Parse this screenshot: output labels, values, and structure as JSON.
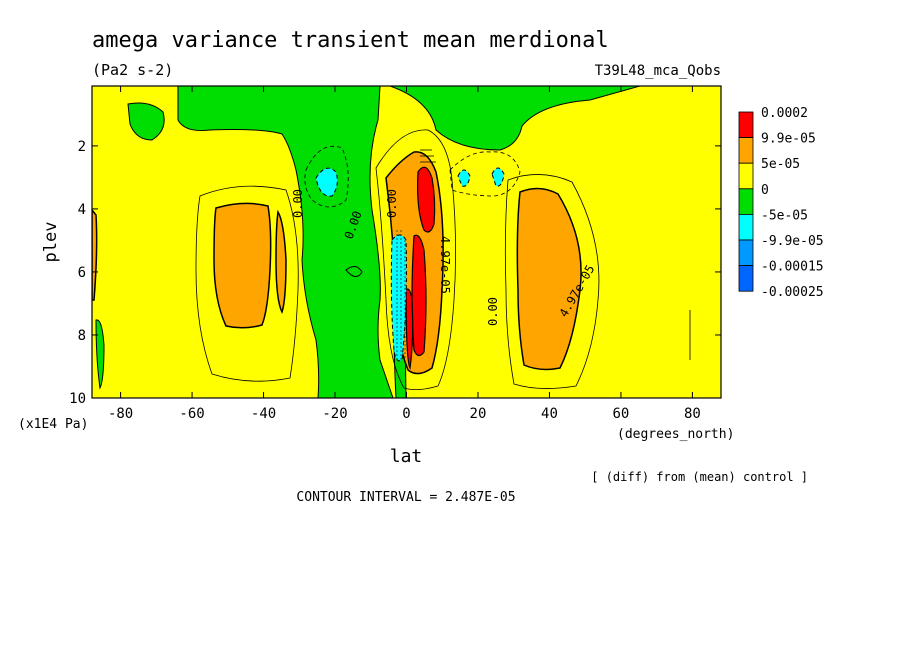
{
  "chart_data": {
    "type": "contour",
    "title": "amega variance transient mean merdional",
    "units": "(Pa2 s-2)",
    "experiment": "T39L48_mca_Qobs",
    "xlabel": "lat",
    "xunits": "(degrees_north)",
    "ylabel": "plev",
    "yunits": "(x1E4 Pa)",
    "xlim": [
      -88,
      88
    ],
    "ylim": [
      10,
      0.1
    ],
    "xticks": [
      -80,
      -60,
      -40,
      -20,
      0,
      20,
      40,
      60,
      80
    ],
    "xtick_labels": [
      "-80",
      "-60",
      "-40",
      "-20",
      "0",
      "20",
      "40",
      "60",
      "80"
    ],
    "yticks": [
      2,
      4,
      6,
      8,
      10
    ],
    "ytick_labels": [
      "2",
      "4",
      "6",
      "8",
      "10"
    ],
    "note": "[ (diff) from (mean) control ]",
    "contour_interval": "CONTOUR INTERVAL = 2.487E-05",
    "legend": {
      "labels": [
        "0.0002",
        "9.9e-05",
        "5e-05",
        "0",
        "-5e-05",
        "-9.9e-05",
        "-0.00015",
        "-0.00025"
      ],
      "colors": [
        "#ff0000",
        "#ffa500",
        "#ffff00",
        "#00dd00",
        "#00ffff",
        "#0099ff",
        "#0066ff"
      ]
    },
    "contour_labels": [
      "0.00",
      "0.00",
      "0.00",
      "4.97e-05",
      "4.97e-05",
      "0.00"
    ]
  }
}
